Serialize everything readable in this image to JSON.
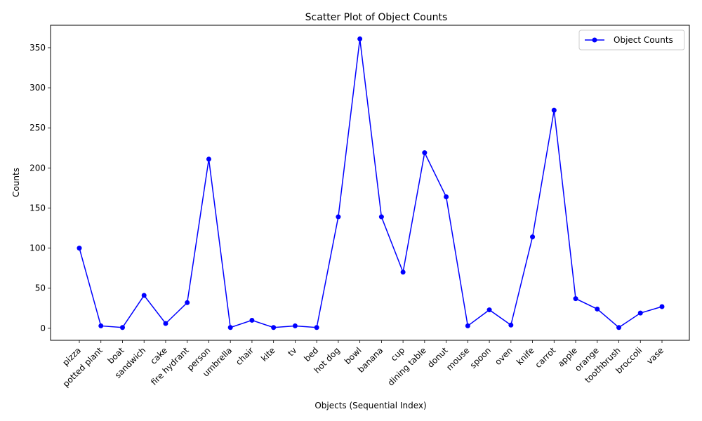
{
  "chart_data": {
    "type": "line",
    "title": "Scatter Plot of Object Counts",
    "xlabel": "Objects (Sequential Index)",
    "ylabel": "Counts",
    "categories": [
      "pizza",
      "potted plant",
      "boat",
      "sandwich",
      "cake",
      "fire hydrant",
      "person",
      "umbrella",
      "chair",
      "kite",
      "tv",
      "bed",
      "hot dog",
      "bowl",
      "banana",
      "cup",
      "dining table",
      "donut",
      "mouse",
      "spoon",
      "oven",
      "knife",
      "carrot",
      "apple",
      "orange",
      "toothbrush",
      "broccoli",
      "vase"
    ],
    "series": [
      {
        "name": "Object Counts",
        "color": "#0000ff",
        "marker": "circle",
        "values": [
          100,
          3,
          1,
          41,
          6,
          32,
          211,
          1,
          10,
          1,
          3,
          1,
          139,
          361,
          139,
          70,
          219,
          164,
          3,
          23,
          4,
          114,
          272,
          37,
          24,
          1,
          19,
          27
        ]
      }
    ],
    "ylim": [
      -15,
      378
    ],
    "yticks": [
      0,
      50,
      100,
      150,
      200,
      250,
      300,
      350
    ],
    "grid": false,
    "legend": "top-right"
  }
}
